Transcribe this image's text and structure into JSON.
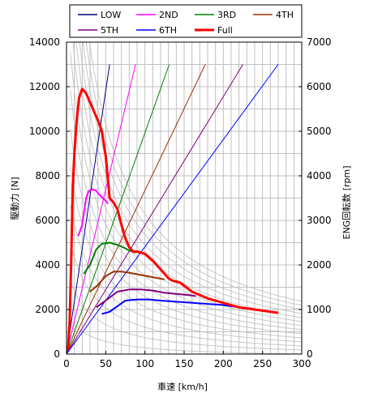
{
  "chart_data": {
    "type": "line",
    "xlabel": "車速 [km/h]",
    "ylabel": "駆動力 [N]",
    "y2label": "ENG回転数 [rpm]",
    "xlim": [
      0,
      300
    ],
    "ylim": [
      0,
      14000
    ],
    "y2lim": [
      0,
      7000
    ],
    "x_ticks": [
      0,
      50,
      100,
      150,
      200,
      250,
      300
    ],
    "y_ticks": [
      0,
      2000,
      4000,
      6000,
      8000,
      10000,
      12000,
      14000
    ],
    "y2_ticks": [
      0,
      1000,
      2000,
      3000,
      4000,
      5000,
      6000,
      7000
    ],
    "grid": true,
    "legend_position": "top",
    "legend": [
      "LOW",
      "2ND",
      "3RD",
      "4TH",
      "5TH",
      "6TH",
      "Full"
    ],
    "rpm_lines": [
      {
        "name": "LOW",
        "color": "#000080",
        "points": [
          [
            0,
            0
          ],
          [
            55,
            6500
          ]
        ]
      },
      {
        "name": "2ND",
        "color": "#ff00ff",
        "points": [
          [
            0,
            0
          ],
          [
            88,
            6500
          ]
        ]
      },
      {
        "name": "3RD",
        "color": "#008000",
        "points": [
          [
            0,
            0
          ],
          [
            131,
            6500
          ]
        ]
      },
      {
        "name": "4TH",
        "color": "#993300",
        "points": [
          [
            0,
            0
          ],
          [
            177,
            6500
          ]
        ]
      },
      {
        "name": "5TH",
        "color": "#800080",
        "points": [
          [
            0,
            0
          ],
          [
            225,
            6500
          ]
        ]
      },
      {
        "name": "6TH",
        "color": "#0000ff",
        "points": [
          [
            0,
            0
          ],
          [
            270,
            6500
          ]
        ]
      }
    ],
    "series": [
      {
        "name": "LOW",
        "color": "#000080",
        "x": [],
        "y": []
      },
      {
        "name": "2ND",
        "color": "#ff00ff",
        "x": [
          15,
          20,
          25,
          28,
          32,
          37,
          42,
          48,
          53
        ],
        "y": [
          5300,
          5800,
          7000,
          7300,
          7400,
          7350,
          7150,
          6950,
          6750
        ]
      },
      {
        "name": "3RD",
        "color": "#008000",
        "x": [
          22,
          30,
          38,
          45,
          55,
          65,
          72,
          80,
          88
        ],
        "y": [
          3600,
          4000,
          4700,
          4950,
          5000,
          4900,
          4800,
          4650,
          4550
        ]
      },
      {
        "name": "4TH",
        "color": "#993300",
        "x": [
          30,
          40,
          50,
          60,
          70,
          80,
          95,
          110,
          125
        ],
        "y": [
          2800,
          3100,
          3500,
          3700,
          3700,
          3650,
          3550,
          3450,
          3350
        ]
      },
      {
        "name": "5TH",
        "color": "#800080",
        "x": [
          38,
          50,
          65,
          80,
          95,
          110,
          125,
          140,
          155,
          165
        ],
        "y": [
          2100,
          2400,
          2800,
          2900,
          2900,
          2850,
          2750,
          2700,
          2650,
          2600
        ]
      },
      {
        "name": "6TH",
        "color": "#0000ff",
        "x": [
          45,
          55,
          65,
          75,
          90,
          105,
          120,
          140,
          160,
          180,
          200,
          220
        ],
        "y": [
          1800,
          1900,
          2150,
          2400,
          2450,
          2450,
          2400,
          2350,
          2300,
          2250,
          2200,
          2100
        ]
      },
      {
        "name": "Full",
        "color": "#ff0000",
        "x": [
          2,
          4,
          6,
          8,
          10,
          13,
          16,
          20,
          25,
          30,
          35,
          40,
          45,
          50,
          55,
          60,
          65,
          70,
          75,
          80,
          85,
          90,
          100,
          110,
          120,
          130,
          135,
          145,
          160,
          180,
          200,
          220,
          240,
          260,
          270
        ],
        "y": [
          200,
          1500,
          4200,
          7500,
          9000,
          10500,
          11500,
          11900,
          11700,
          11300,
          10900,
          10500,
          10000,
          8900,
          7000,
          6800,
          6500,
          5800,
          5200,
          4800,
          4600,
          4600,
          4500,
          4200,
          3800,
          3400,
          3300,
          3200,
          2800,
          2500,
          2300,
          2100,
          2000,
          1900,
          1850
        ]
      }
    ]
  }
}
